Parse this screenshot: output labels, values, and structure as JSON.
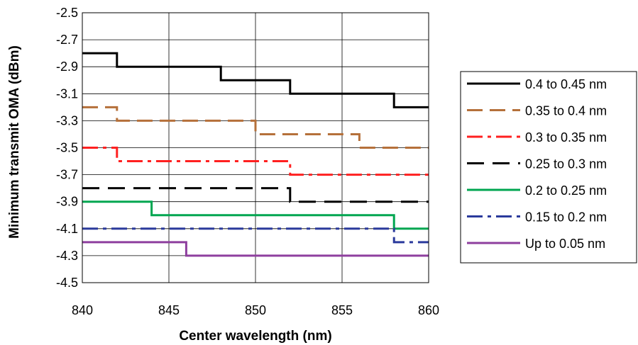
{
  "chart_data": {
    "type": "line",
    "step": true,
    "xlabel": "Center wavelength (nm)",
    "ylabel": "Minimum transmit OMA (dBm)",
    "xlim": [
      840,
      860
    ],
    "ylim": [
      -4.5,
      -2.5
    ],
    "xticks": [
      840,
      845,
      850,
      855,
      860
    ],
    "yticks": [
      -2.5,
      -2.7,
      -2.9,
      -3.1,
      -3.3,
      -3.5,
      -3.7,
      -3.9,
      -4.1,
      -4.3,
      -4.5
    ],
    "xtick_labels": [
      "840",
      "845",
      "850",
      "855",
      "860"
    ],
    "ytick_labels": [
      "-2.5",
      "-2.7",
      "-2.9",
      "-3.1",
      "-3.3",
      "-3.5",
      "-3.7",
      "-3.9",
      "-4.1",
      "-4.3",
      "-4.5"
    ],
    "grid": true,
    "legend_position": "right",
    "series": [
      {
        "name": "0.4 to 0.45 nm",
        "color": "#000000",
        "dash": "solid",
        "x": [
          840,
          842,
          848,
          852,
          858,
          860
        ],
        "y": [
          -2.8,
          -2.9,
          -3.0,
          -3.1,
          -3.2,
          -3.2
        ]
      },
      {
        "name": "0.35 to 0.4 nm",
        "color": "#b5703a",
        "dash": "dash",
        "x": [
          840,
          842,
          850,
          856,
          860
        ],
        "y": [
          -3.2,
          -3.3,
          -3.4,
          -3.5,
          -3.5
        ]
      },
      {
        "name": "0.3 to 0.35 nm",
        "color": "#ff2020",
        "dash": "dashdot",
        "x": [
          840,
          842,
          852,
          860
        ],
        "y": [
          -3.5,
          -3.6,
          -3.7,
          -3.7
        ]
      },
      {
        "name": "0.25 to 0.3 nm",
        "color": "#000000",
        "dash": "longdash",
        "x": [
          840,
          852,
          860
        ],
        "y": [
          -3.8,
          -3.9,
          -3.9
        ]
      },
      {
        "name": "0.2 to 0.25 nm",
        "color": "#00a650",
        "dash": "solid",
        "x": [
          840,
          844,
          858,
          860
        ],
        "y": [
          -3.9,
          -4.0,
          -4.1,
          -4.1
        ]
      },
      {
        "name": "0.15 to 0.2 nm",
        "color": "#2b3a9c",
        "dash": "dashdot",
        "x": [
          840,
          858,
          860
        ],
        "y": [
          -4.1,
          -4.2,
          -4.2
        ]
      },
      {
        "name": "Up to 0.05 nm",
        "color": "#8e3f9e",
        "dash": "solid",
        "x": [
          840,
          846,
          860
        ],
        "y": [
          -4.2,
          -4.3,
          -4.3
        ]
      }
    ]
  }
}
